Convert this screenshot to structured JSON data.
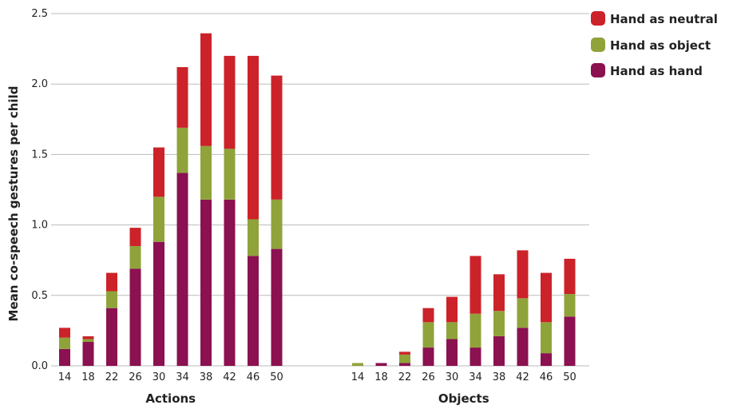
{
  "chart_data": {
    "type": "bar",
    "stacked": true,
    "ylabel": "Mean co-speech gestures per child",
    "ylim": [
      0,
      2.5
    ],
    "yticks": [
      "0.0",
      "0.5",
      "1.0",
      "1.5",
      "2.0",
      "2.5"
    ],
    "grid": true,
    "legend_position": "top-right",
    "series_meta": [
      {
        "name": "Hand as neutral",
        "color": "#cc2229"
      },
      {
        "name": "Hand as object",
        "color": "#8fa33a"
      },
      {
        "name": "Hand as hand",
        "color": "#8b1150"
      }
    ],
    "groups": [
      {
        "label": "Actions",
        "categories": [
          "14",
          "18",
          "22",
          "26",
          "30",
          "34",
          "38",
          "42",
          "46",
          "50"
        ],
        "hand_as_hand": [
          0.12,
          0.17,
          0.41,
          0.69,
          0.88,
          1.37,
          1.18,
          1.18,
          0.78,
          0.83
        ],
        "hand_as_object": [
          0.08,
          0.02,
          0.12,
          0.16,
          0.32,
          0.32,
          0.38,
          0.36,
          0.26,
          0.35
        ],
        "hand_as_neutral": [
          0.07,
          0.02,
          0.13,
          0.13,
          0.35,
          0.43,
          0.8,
          0.66,
          1.16,
          0.88
        ]
      },
      {
        "label": "Objects",
        "categories": [
          "14",
          "18",
          "22",
          "26",
          "30",
          "34",
          "38",
          "42",
          "46",
          "50"
        ],
        "hand_as_hand": [
          0.0,
          0.02,
          0.02,
          0.13,
          0.19,
          0.13,
          0.21,
          0.27,
          0.09,
          0.35
        ],
        "hand_as_object": [
          0.02,
          0.0,
          0.06,
          0.18,
          0.12,
          0.24,
          0.18,
          0.21,
          0.22,
          0.16
        ],
        "hand_as_neutral": [
          0.0,
          0.0,
          0.02,
          0.1,
          0.18,
          0.41,
          0.26,
          0.34,
          0.35,
          0.25
        ]
      }
    ]
  }
}
